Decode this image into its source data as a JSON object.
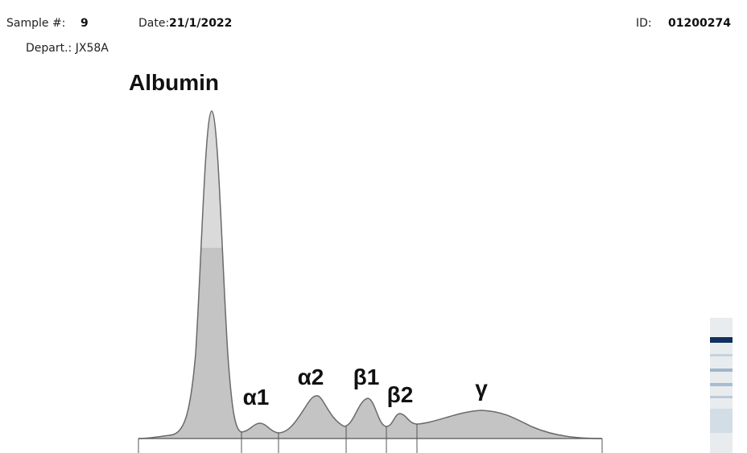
{
  "header": {
    "sample_label": "Sample #:",
    "sample": "9",
    "date_label": "Date:",
    "date": "21/1/2022",
    "id_label": "ID:",
    "id": "01200274",
    "depart": "Depart.: JX58A"
  },
  "fractions": {
    "albumin": "Albumin",
    "alpha1": "α1",
    "alpha2": "α2",
    "beta1": "β1",
    "beta2": "β2",
    "gamma": "γ"
  }
}
